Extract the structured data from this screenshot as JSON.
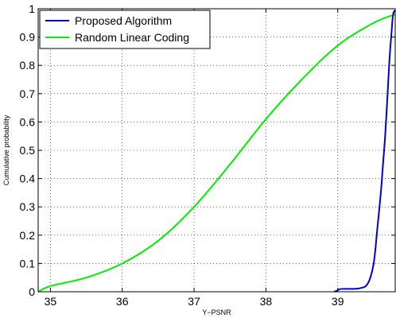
{
  "chart_data": {
    "type": "line",
    "title": "",
    "xlabel": "Y−PSNR",
    "ylabel": "Cumulative probability",
    "xlim": [
      34.83,
      39.8
    ],
    "ylim": [
      0,
      1
    ],
    "xticks": [
      35,
      36,
      37,
      38,
      39
    ],
    "yticks": [
      0,
      0.1,
      0.2,
      0.3,
      0.4,
      0.5,
      0.6,
      0.7,
      0.8,
      0.9,
      1
    ],
    "xtick_labels": [
      "35",
      "36",
      "37",
      "38",
      "39"
    ],
    "ytick_labels": [
      "0",
      "0.1",
      "0.2",
      "0.3",
      "0.4",
      "0.5",
      "0.6",
      "0.7",
      "0.8",
      "0.9",
      "1"
    ],
    "grid": true,
    "legend_position": "top-left",
    "series": [
      {
        "name": "Proposed Algorithm",
        "color": "#0000cc",
        "x": [
          38.95,
          39.0,
          39.05,
          39.3,
          39.42,
          39.5,
          39.55,
          39.6,
          39.63,
          39.66,
          39.69,
          39.72,
          39.75,
          39.77,
          39.8
        ],
        "y": [
          0.0,
          0.005,
          0.01,
          0.012,
          0.03,
          0.1,
          0.22,
          0.35,
          0.45,
          0.55,
          0.68,
          0.82,
          0.92,
          0.98,
          0.995
        ]
      },
      {
        "name": "Random Linear Coding",
        "color": "#00ee00",
        "x": [
          34.83,
          35.0,
          35.5,
          36.0,
          36.5,
          37.0,
          37.5,
          38.0,
          38.5,
          39.0,
          39.5,
          39.8
        ],
        "y": [
          0.0,
          0.02,
          0.05,
          0.1,
          0.18,
          0.3,
          0.45,
          0.61,
          0.75,
          0.87,
          0.95,
          0.98
        ]
      }
    ]
  }
}
